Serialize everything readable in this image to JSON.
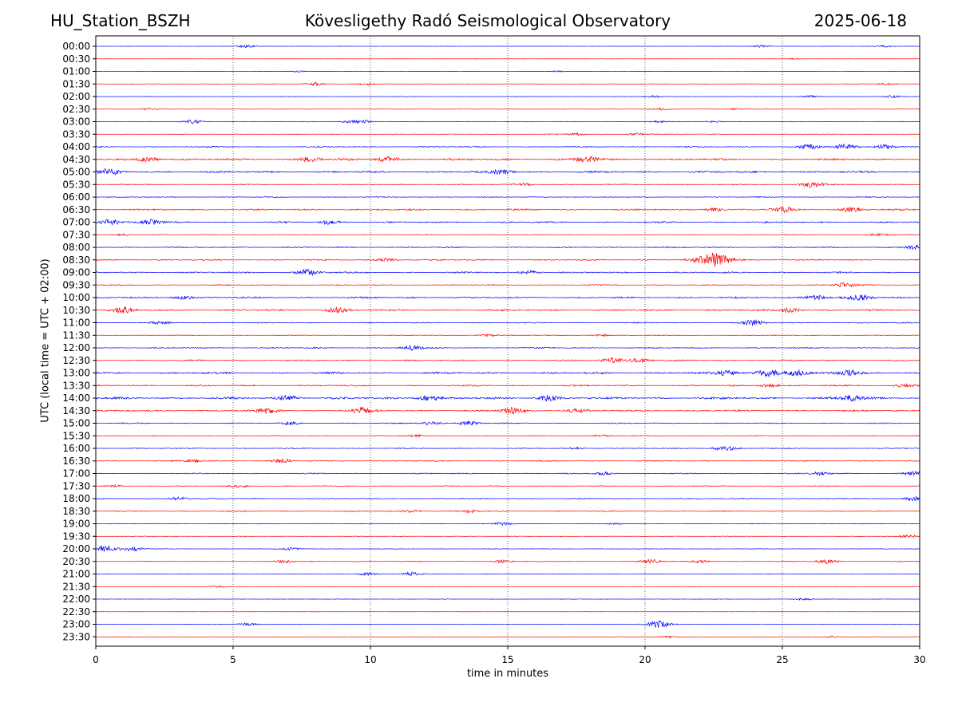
{
  "header": {
    "station": "HU_Station_BSZH",
    "title": "Kövesligethy Radó Seismological Observatory",
    "date": "2025-06-18"
  },
  "chart_data": {
    "type": "line",
    "title": "Kövesligethy Radó Seismological Observatory",
    "xlabel": "time in minutes",
    "ylabel": "UTC (local time = UTC + 02:00)",
    "xlim": [
      0,
      30
    ],
    "x_ticks": [
      0,
      5,
      10,
      15,
      20,
      25,
      30
    ],
    "grid": "vertical dotted lines every 5 minutes",
    "colors": [
      "#0000ff",
      "#ff0000"
    ],
    "rows": [
      {
        "label": "00:00",
        "color": "#0000ff",
        "noise": 0.15,
        "events": [
          [
            5.5,
            2.0
          ],
          [
            24.2,
            1.4
          ],
          [
            28.7,
            1.2
          ]
        ]
      },
      {
        "label": "00:30",
        "color": "#ff0000",
        "noise": 0.12,
        "events": [
          [
            25.5,
            0.8
          ]
        ]
      },
      {
        "label": "01:00",
        "color": "#0000ff",
        "noise": 0.1,
        "events": [
          [
            7.4,
            1.0
          ],
          [
            16.8,
            0.8
          ]
        ]
      },
      {
        "label": "01:30",
        "color": "#ff0000",
        "noise": 0.3,
        "events": [
          [
            8.0,
            2.2
          ],
          [
            9.8,
            1.4
          ],
          [
            28.8,
            1.2
          ]
        ]
      },
      {
        "label": "02:00",
        "color": "#0000ff",
        "noise": 0.35,
        "events": [
          [
            20.3,
            1.2
          ],
          [
            26.0,
            1.4
          ],
          [
            29.0,
            1.2
          ]
        ]
      },
      {
        "label": "02:30",
        "color": "#ff0000",
        "noise": 0.3,
        "events": [
          [
            1.9,
            1.4
          ],
          [
            20.6,
            1.2
          ],
          [
            23.3,
            1.2
          ]
        ]
      },
      {
        "label": "03:00",
        "color": "#0000ff",
        "noise": 0.35,
        "events": [
          [
            3.5,
            2.4
          ],
          [
            9.2,
            1.6
          ],
          [
            9.8,
            1.6
          ],
          [
            20.5,
            1.2
          ],
          [
            22.5,
            1.2
          ]
        ]
      },
      {
        "label": "03:30",
        "color": "#ff0000",
        "noise": 0.45,
        "events": [
          [
            17.5,
            1.6
          ],
          [
            19.7,
            1.8
          ]
        ]
      },
      {
        "label": "04:00",
        "color": "#0000ff",
        "noise": 0.8,
        "events": [
          [
            26.0,
            2.8
          ],
          [
            27.3,
            3.0
          ],
          [
            28.7,
            2.8
          ]
        ]
      },
      {
        "label": "04:30",
        "color": "#ff0000",
        "noise": 1.3,
        "events": [
          [
            1.9,
            2.8
          ],
          [
            7.8,
            3.0
          ],
          [
            10.6,
            3.2
          ],
          [
            17.9,
            3.4
          ]
        ]
      },
      {
        "label": "05:00",
        "color": "#0000ff",
        "noise": 1.3,
        "events": [
          [
            0.5,
            3.2
          ],
          [
            14.8,
            2.8
          ]
        ]
      },
      {
        "label": "05:30",
        "color": "#ff0000",
        "noise": 0.6,
        "events": [
          [
            15.5,
            2.0
          ],
          [
            26.1,
            4.0
          ]
        ]
      },
      {
        "label": "06:00",
        "color": "#0000ff",
        "noise": 0.6,
        "events": []
      },
      {
        "label": "06:30",
        "color": "#ff0000",
        "noise": 1.1,
        "events": [
          [
            22.5,
            2.0
          ],
          [
            25.0,
            3.0
          ],
          [
            27.5,
            2.6
          ]
        ]
      },
      {
        "label": "07:00",
        "color": "#0000ff",
        "noise": 1.0,
        "events": [
          [
            0.5,
            3.4
          ],
          [
            2.0,
            3.0
          ],
          [
            8.5,
            2.4
          ]
        ]
      },
      {
        "label": "07:30",
        "color": "#ff0000",
        "noise": 0.5,
        "events": [
          [
            1.0,
            1.4
          ],
          [
            28.5,
            1.6
          ]
        ]
      },
      {
        "label": "08:00",
        "color": "#0000ff",
        "noise": 0.9,
        "events": [
          [
            29.8,
            2.4
          ]
        ]
      },
      {
        "label": "08:30",
        "color": "#ff0000",
        "noise": 0.9,
        "events": [
          [
            22.5,
            8.5
          ],
          [
            10.6,
            2.2
          ]
        ]
      },
      {
        "label": "09:00",
        "color": "#0000ff",
        "noise": 1.0,
        "events": [
          [
            7.7,
            3.6
          ],
          [
            15.8,
            2.0
          ]
        ]
      },
      {
        "label": "09:30",
        "color": "#ff0000",
        "noise": 0.7,
        "events": [
          [
            27.3,
            2.8
          ]
        ]
      },
      {
        "label": "10:00",
        "color": "#0000ff",
        "noise": 1.1,
        "events": [
          [
            3.2,
            2.6
          ],
          [
            26.2,
            3.2
          ],
          [
            27.8,
            3.6
          ]
        ]
      },
      {
        "label": "10:30",
        "color": "#ff0000",
        "noise": 1.2,
        "events": [
          [
            1.0,
            3.0
          ],
          [
            8.8,
            3.2
          ],
          [
            25.3,
            2.6
          ]
        ]
      },
      {
        "label": "11:00",
        "color": "#0000ff",
        "noise": 0.7,
        "events": [
          [
            2.4,
            1.8
          ],
          [
            23.9,
            3.6
          ]
        ]
      },
      {
        "label": "11:30",
        "color": "#ff0000",
        "noise": 0.5,
        "events": [
          [
            14.3,
            1.4
          ],
          [
            18.4,
            1.4
          ]
        ]
      },
      {
        "label": "12:00",
        "color": "#0000ff",
        "noise": 0.8,
        "events": [
          [
            11.5,
            2.8
          ]
        ]
      },
      {
        "label": "12:30",
        "color": "#ff0000",
        "noise": 0.9,
        "events": [
          [
            18.8,
            3.2
          ],
          [
            19.8,
            3.0
          ]
        ]
      },
      {
        "label": "13:00",
        "color": "#0000ff",
        "noise": 1.3,
        "events": [
          [
            23.0,
            3.2
          ],
          [
            24.5,
            4.2
          ],
          [
            25.5,
            3.2
          ],
          [
            27.4,
            3.6
          ]
        ]
      },
      {
        "label": "13:30",
        "color": "#ff0000",
        "noise": 1.0,
        "events": [
          [
            24.5,
            2.2
          ],
          [
            29.5,
            2.4
          ]
        ]
      },
      {
        "label": "14:00",
        "color": "#0000ff",
        "noise": 1.4,
        "events": [
          [
            7.0,
            3.0
          ],
          [
            12.1,
            3.2
          ],
          [
            16.5,
            3.2
          ],
          [
            27.5,
            3.4
          ]
        ]
      },
      {
        "label": "14:30",
        "color": "#ff0000",
        "noise": 1.1,
        "events": [
          [
            6.3,
            3.4
          ],
          [
            9.7,
            3.6
          ],
          [
            15.2,
            3.8
          ],
          [
            17.5,
            2.4
          ]
        ]
      },
      {
        "label": "15:00",
        "color": "#0000ff",
        "noise": 0.7,
        "events": [
          [
            7.1,
            2.0
          ],
          [
            12.2,
            2.6
          ],
          [
            13.6,
            2.8
          ]
        ]
      },
      {
        "label": "15:30",
        "color": "#ff0000",
        "noise": 0.5,
        "events": [
          [
            11.6,
            1.4
          ],
          [
            18.4,
            1.2
          ]
        ]
      },
      {
        "label": "16:00",
        "color": "#0000ff",
        "noise": 0.6,
        "events": [
          [
            22.9,
            3.4
          ],
          [
            17.5,
            1.2
          ]
        ]
      },
      {
        "label": "16:30",
        "color": "#ff0000",
        "noise": 0.7,
        "events": [
          [
            6.8,
            2.2
          ],
          [
            3.5,
            1.6
          ]
        ]
      },
      {
        "label": "17:00",
        "color": "#0000ff",
        "noise": 0.7,
        "events": [
          [
            18.5,
            2.0
          ],
          [
            26.4,
            2.2
          ],
          [
            29.8,
            2.4
          ]
        ]
      },
      {
        "label": "17:30",
        "color": "#ff0000",
        "noise": 0.6,
        "events": [
          [
            5.2,
            1.8
          ],
          [
            0.6,
            1.4
          ]
        ]
      },
      {
        "label": "18:00",
        "color": "#0000ff",
        "noise": 0.6,
        "events": [
          [
            3.0,
            2.2
          ],
          [
            29.8,
            2.4
          ]
        ]
      },
      {
        "label": "18:30",
        "color": "#ff0000",
        "noise": 0.7,
        "events": [
          [
            13.6,
            2.0
          ],
          [
            11.5,
            1.6
          ]
        ]
      },
      {
        "label": "19:00",
        "color": "#0000ff",
        "noise": 0.4,
        "events": [
          [
            14.8,
            2.0
          ],
          [
            18.9,
            1.4
          ]
        ]
      },
      {
        "label": "19:30",
        "color": "#ff0000",
        "noise": 0.3,
        "events": [
          [
            29.6,
            2.0
          ]
        ]
      },
      {
        "label": "20:00",
        "color": "#0000ff",
        "noise": 0.35,
        "events": [
          [
            0.3,
            4.2
          ],
          [
            1.3,
            3.0
          ],
          [
            7.1,
            1.8
          ]
        ]
      },
      {
        "label": "20:30",
        "color": "#ff0000",
        "noise": 0.5,
        "events": [
          [
            6.8,
            2.0
          ],
          [
            14.8,
            1.8
          ],
          [
            20.2,
            2.4
          ],
          [
            22.0,
            2.0
          ],
          [
            26.6,
            2.8
          ]
        ]
      },
      {
        "label": "21:00",
        "color": "#0000ff",
        "noise": 0.35,
        "events": [
          [
            9.9,
            1.8
          ],
          [
            11.5,
            2.4
          ]
        ]
      },
      {
        "label": "21:30",
        "color": "#ff0000",
        "noise": 0.2,
        "events": [
          [
            4.5,
            1.2
          ]
        ]
      },
      {
        "label": "22:00",
        "color": "#0000ff",
        "noise": 0.25,
        "events": [
          [
            25.8,
            1.4
          ]
        ]
      },
      {
        "label": "22:30",
        "color": "#ff0000",
        "noise": 0.15,
        "events": []
      },
      {
        "label": "23:00",
        "color": "#0000ff",
        "noise": 0.25,
        "events": [
          [
            5.5,
            1.8
          ],
          [
            20.5,
            4.4
          ]
        ]
      },
      {
        "label": "23:30",
        "color": "#ff0000",
        "noise": 0.2,
        "events": [
          [
            20.8,
            1.2
          ],
          [
            26.8,
            1.0
          ]
        ]
      }
    ]
  }
}
